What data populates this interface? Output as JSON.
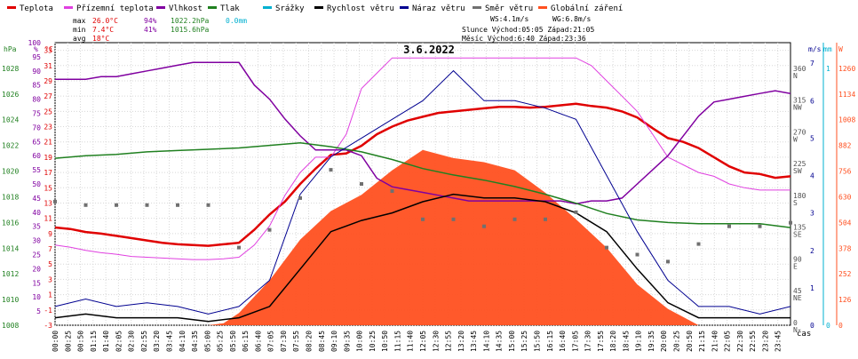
{
  "chart_data": {
    "type": "line",
    "title": "3.6.2022",
    "legend": {
      "placement": "top",
      "items": [
        {
          "label": "Teplota",
          "color": "#e00000"
        },
        {
          "label": "Přízemní teplota",
          "color": "#e040e0"
        },
        {
          "label": "Vlhkost",
          "color": "#8000a0"
        },
        {
          "label": "Tlak",
          "color": "#208020"
        },
        {
          "label": "Srážky",
          "color": "#00b0d0"
        },
        {
          "label": "Rychlost větru",
          "color": "#000000"
        },
        {
          "label": "Náraz větru",
          "color": "#000090"
        },
        {
          "label": "Směr větru",
          "color": "#707070"
        },
        {
          "label": "Globální záření",
          "color": "#ff5020"
        }
      ]
    },
    "stats": {
      "max": {
        "label": "max",
        "temp": "26.0°C",
        "hum": "94%",
        "press": "1022.2hPa",
        "rain": "0.0mm"
      },
      "min": {
        "label": "min",
        "temp": "7.4°C",
        "hum": "41%",
        "press": "1015.6hPa"
      },
      "avg": {
        "label": "avg",
        "temp": "18°C"
      }
    },
    "info": {
      "ws": "WS:4.1m/s",
      "wg": "WG:6.8m/s",
      "sun": "Slunce Východ:05:05  Západ:21:05",
      "moon": "Měsíc  Východ:6:40   Západ:23:36"
    },
    "axes": {
      "hpa": {
        "label": "hPa",
        "ticks": [
          "1008",
          "1010",
          "1012",
          "1014",
          "1016",
          "1018",
          "1020",
          "1022",
          "1024",
          "1026",
          "1028"
        ],
        "range": [
          1008,
          1030
        ]
      },
      "pct": {
        "label": "%",
        "ticks": [
          "5",
          "10",
          "15",
          "20",
          "25",
          "30",
          "35",
          "40",
          "45",
          "50",
          "55",
          "60",
          "65",
          "70",
          "75",
          "80",
          "85",
          "90",
          "95",
          "100"
        ],
        "range": [
          0,
          100
        ]
      },
      "temp": {
        "label": "°C",
        "ticks": [
          "-3",
          "-1",
          "1",
          "3",
          "5",
          "7",
          "9",
          "11",
          "13",
          "15",
          "17",
          "19",
          "21",
          "23",
          "25",
          "27",
          "29",
          "31",
          "33"
        ],
        "range": [
          -3,
          34
        ]
      },
      "dir": {
        "ticks": [
          {
            "v": 360,
            "l": "N"
          },
          {
            "v": 315,
            "l": "NW"
          },
          {
            "v": 270,
            "l": "W"
          },
          {
            "v": 225,
            "l": "SW"
          },
          {
            "v": 180,
            "l": "S"
          },
          {
            "v": 135,
            "l": "SE"
          },
          {
            "v": 90,
            "l": "E"
          },
          {
            "v": 45,
            "l": "NE"
          },
          {
            "v": 0,
            "l": "N"
          }
        ]
      },
      "ms": {
        "label": "m/s",
        "ticks": [
          "0",
          "1",
          "2",
          "3",
          "4",
          "5",
          "6",
          "7"
        ]
      },
      "mm": {
        "label": "mm",
        "ticks": [
          "0",
          "1"
        ]
      },
      "wm2": {
        "label": "W",
        "ticks": [
          "0",
          "126",
          "252",
          "378",
          "504",
          "630",
          "756",
          "882",
          "1008",
          "1134",
          "1260"
        ],
        "range": [
          0,
          1386
        ]
      }
    },
    "x_label": "čas",
    "x_ticks": [
      "00:00",
      "00:25",
      "00:50",
      "01:15",
      "01:40",
      "02:05",
      "02:30",
      "02:55",
      "03:20",
      "03:45",
      "04:10",
      "04:35",
      "05:00",
      "05:25",
      "05:50",
      "06:15",
      "06:40",
      "07:05",
      "07:30",
      "07:55",
      "08:20",
      "08:45",
      "09:10",
      "09:35",
      "10:00",
      "10:25",
      "10:50",
      "11:15",
      "11:40",
      "12:05",
      "12:30",
      "12:55",
      "13:20",
      "13:45",
      "14:10",
      "14:35",
      "15:00",
      "15:25",
      "15:50",
      "16:15",
      "16:40",
      "17:05",
      "17:30",
      "17:55",
      "18:20",
      "18:45",
      "19:10",
      "19:35",
      "20:00",
      "20:25",
      "20:50",
      "21:15",
      "21:40",
      "22:05",
      "22:30",
      "22:55",
      "23:20",
      "23:45"
    ],
    "series": [
      {
        "name": "Teplota",
        "unit": "°C",
        "color": "#e00000",
        "x": [
          0,
          0.5,
          1,
          1.5,
          2,
          2.5,
          3,
          3.5,
          4,
          4.5,
          5,
          5.5,
          6,
          6.5,
          7,
          7.5,
          8,
          8.5,
          9,
          9.5,
          10,
          10.5,
          11,
          11.5,
          12,
          12.5,
          13,
          13.5,
          14,
          14.5,
          15,
          15.5,
          16,
          16.5,
          17,
          17.5,
          18,
          18.5,
          19,
          19.5,
          20,
          20.5,
          21,
          21.5,
          22,
          22.5,
          23,
          23.5,
          24
        ],
        "values": [
          9.8,
          9.6,
          9.2,
          9.0,
          8.7,
          8.4,
          8.1,
          7.8,
          7.6,
          7.5,
          7.4,
          7.6,
          7.8,
          9.5,
          11.5,
          13.2,
          15.5,
          17.5,
          19.3,
          19.5,
          20.5,
          22.0,
          23.0,
          23.8,
          24.3,
          24.8,
          25.0,
          25.2,
          25.4,
          25.6,
          25.6,
          25.5,
          25.6,
          25.8,
          26.0,
          25.7,
          25.5,
          25.0,
          24.2,
          22.8,
          21.5,
          21.0,
          20.2,
          19.0,
          17.8,
          17.0,
          16.8,
          16.3,
          16.5
        ]
      },
      {
        "name": "Přízemní teplota",
        "unit": "°C",
        "color": "#e040e0",
        "x": [
          0,
          0.5,
          1,
          1.5,
          2,
          2.5,
          3,
          3.5,
          4,
          4.5,
          5,
          5.5,
          6,
          6.5,
          7,
          7.5,
          8,
          8.5,
          9,
          9.5,
          10,
          10.5,
          11,
          11.5,
          12,
          12.5,
          13,
          13.5,
          14,
          14.5,
          15,
          15.5,
          16,
          16.5,
          17,
          17.5,
          18,
          18.5,
          19,
          19.5,
          20,
          20.5,
          21,
          21.5,
          22,
          22.5,
          23,
          23.5,
          24
        ],
        "values": [
          7.5,
          7.2,
          6.8,
          6.5,
          6.3,
          6.0,
          5.9,
          5.8,
          5.7,
          5.6,
          5.6,
          5.7,
          5.9,
          7.5,
          10.0,
          14.0,
          17.0,
          19.0,
          19.0,
          22.0,
          28.0,
          30.0,
          32.0,
          32.0,
          32.0,
          32.0,
          32.0,
          32.0,
          32.0,
          32.0,
          32.0,
          32.0,
          32.0,
          32.0,
          32.0,
          31.0,
          29.0,
          27.0,
          25.0,
          22.0,
          19.0,
          18.0,
          17.0,
          16.5,
          15.5,
          15.0,
          14.7,
          14.7,
          14.7
        ]
      },
      {
        "name": "Vlhkost",
        "unit": "%",
        "color": "#8000a0",
        "x": [
          0,
          0.5,
          1,
          1.5,
          2,
          2.5,
          3,
          3.5,
          4,
          4.5,
          5,
          5.5,
          6,
          6.5,
          7,
          7.5,
          8,
          8.5,
          9,
          9.5,
          10,
          10.5,
          11,
          11.5,
          12,
          12.5,
          13,
          13.5,
          14,
          14.5,
          15,
          15.5,
          16,
          16.5,
          17,
          17.5,
          18,
          18.5,
          19,
          19.5,
          20,
          20.5,
          21,
          21.5,
          22,
          22.5,
          23,
          23.5,
          24
        ],
        "values": [
          87,
          87,
          87,
          88,
          88,
          89,
          90,
          91,
          92,
          93,
          93,
          93,
          93,
          85,
          80,
          73,
          67,
          62,
          62,
          62,
          60,
          52,
          49,
          48,
          47,
          46,
          45,
          44,
          44,
          44,
          44,
          44,
          44,
          44,
          43,
          44,
          44,
          45,
          50,
          55,
          60,
          67,
          74,
          79,
          80,
          81,
          82,
          83,
          82
        ]
      },
      {
        "name": "Tlak",
        "unit": "hPa",
        "color": "#208020",
        "x": [
          0,
          1,
          2,
          3,
          4,
          5,
          6,
          7,
          8,
          9,
          10,
          11,
          12,
          13,
          14,
          15,
          16,
          17,
          18,
          19,
          20,
          21,
          22,
          23,
          24
        ],
        "values": [
          1021.0,
          1021.2,
          1021.3,
          1021.5,
          1021.6,
          1021.7,
          1021.8,
          1022.0,
          1022.2,
          1021.9,
          1021.5,
          1020.9,
          1020.2,
          1019.7,
          1019.3,
          1018.8,
          1018.2,
          1017.5,
          1016.7,
          1016.2,
          1016.0,
          1015.9,
          1015.9,
          1015.9,
          1015.6
        ]
      },
      {
        "name": "Rychlost větru",
        "unit": "m/s",
        "color": "#000000",
        "x": [
          0,
          1,
          2,
          3,
          4,
          5,
          6,
          7,
          8,
          9,
          10,
          11,
          12,
          13,
          14,
          15,
          16,
          17,
          18,
          19,
          20,
          21,
          22,
          23,
          24
        ],
        "values": [
          0.2,
          0.3,
          0.2,
          0.2,
          0.2,
          0.1,
          0.2,
          0.5,
          1.5,
          2.5,
          2.8,
          3.0,
          3.3,
          3.5,
          3.4,
          3.4,
          3.3,
          3.0,
          2.5,
          1.5,
          0.6,
          0.2,
          0.2,
          0.2,
          0.2
        ]
      },
      {
        "name": "Náraz větru",
        "unit": "m/s",
        "color": "#000090",
        "x": [
          0,
          1,
          2,
          3,
          4,
          5,
          6,
          7,
          8,
          9,
          10,
          11,
          12,
          13,
          14,
          15,
          16,
          17,
          18,
          19,
          20,
          21,
          22,
          23,
          24
        ],
        "values": [
          0.5,
          0.7,
          0.5,
          0.6,
          0.5,
          0.3,
          0.5,
          1.2,
          3.5,
          4.5,
          5.0,
          5.5,
          6.0,
          6.8,
          6.0,
          6.0,
          5.8,
          5.5,
          4.0,
          2.5,
          1.2,
          0.5,
          0.5,
          0.3,
          0.5
        ]
      },
      {
        "name": "Směr větru",
        "unit": "°",
        "color": "#707070",
        "x": [
          0,
          1,
          2,
          3,
          4,
          5,
          6,
          7,
          8,
          9,
          10,
          11,
          12,
          13,
          14,
          15,
          16,
          17,
          18,
          19,
          20,
          21,
          22,
          23,
          24
        ],
        "values": [
          175,
          170,
          170,
          170,
          170,
          170,
          110,
          135,
          180,
          220,
          200,
          190,
          150,
          150,
          140,
          150,
          150,
          160,
          110,
          100,
          90,
          115,
          140,
          140,
          145
        ]
      },
      {
        "name": "Globální záření",
        "unit": "W/m²",
        "color": "#ff5020",
        "x": [
          0,
          1,
          2,
          3,
          4,
          5,
          5.5,
          6,
          7,
          8,
          9,
          10,
          11,
          12,
          13,
          14,
          15,
          16,
          17,
          18,
          19,
          20,
          21,
          22,
          23,
          24
        ],
        "values": [
          0,
          0,
          0,
          0,
          0,
          0,
          10,
          60,
          220,
          420,
          560,
          640,
          760,
          860,
          820,
          800,
          760,
          650,
          520,
          380,
          200,
          80,
          0,
          0,
          0,
          0
        ]
      }
    ]
  }
}
